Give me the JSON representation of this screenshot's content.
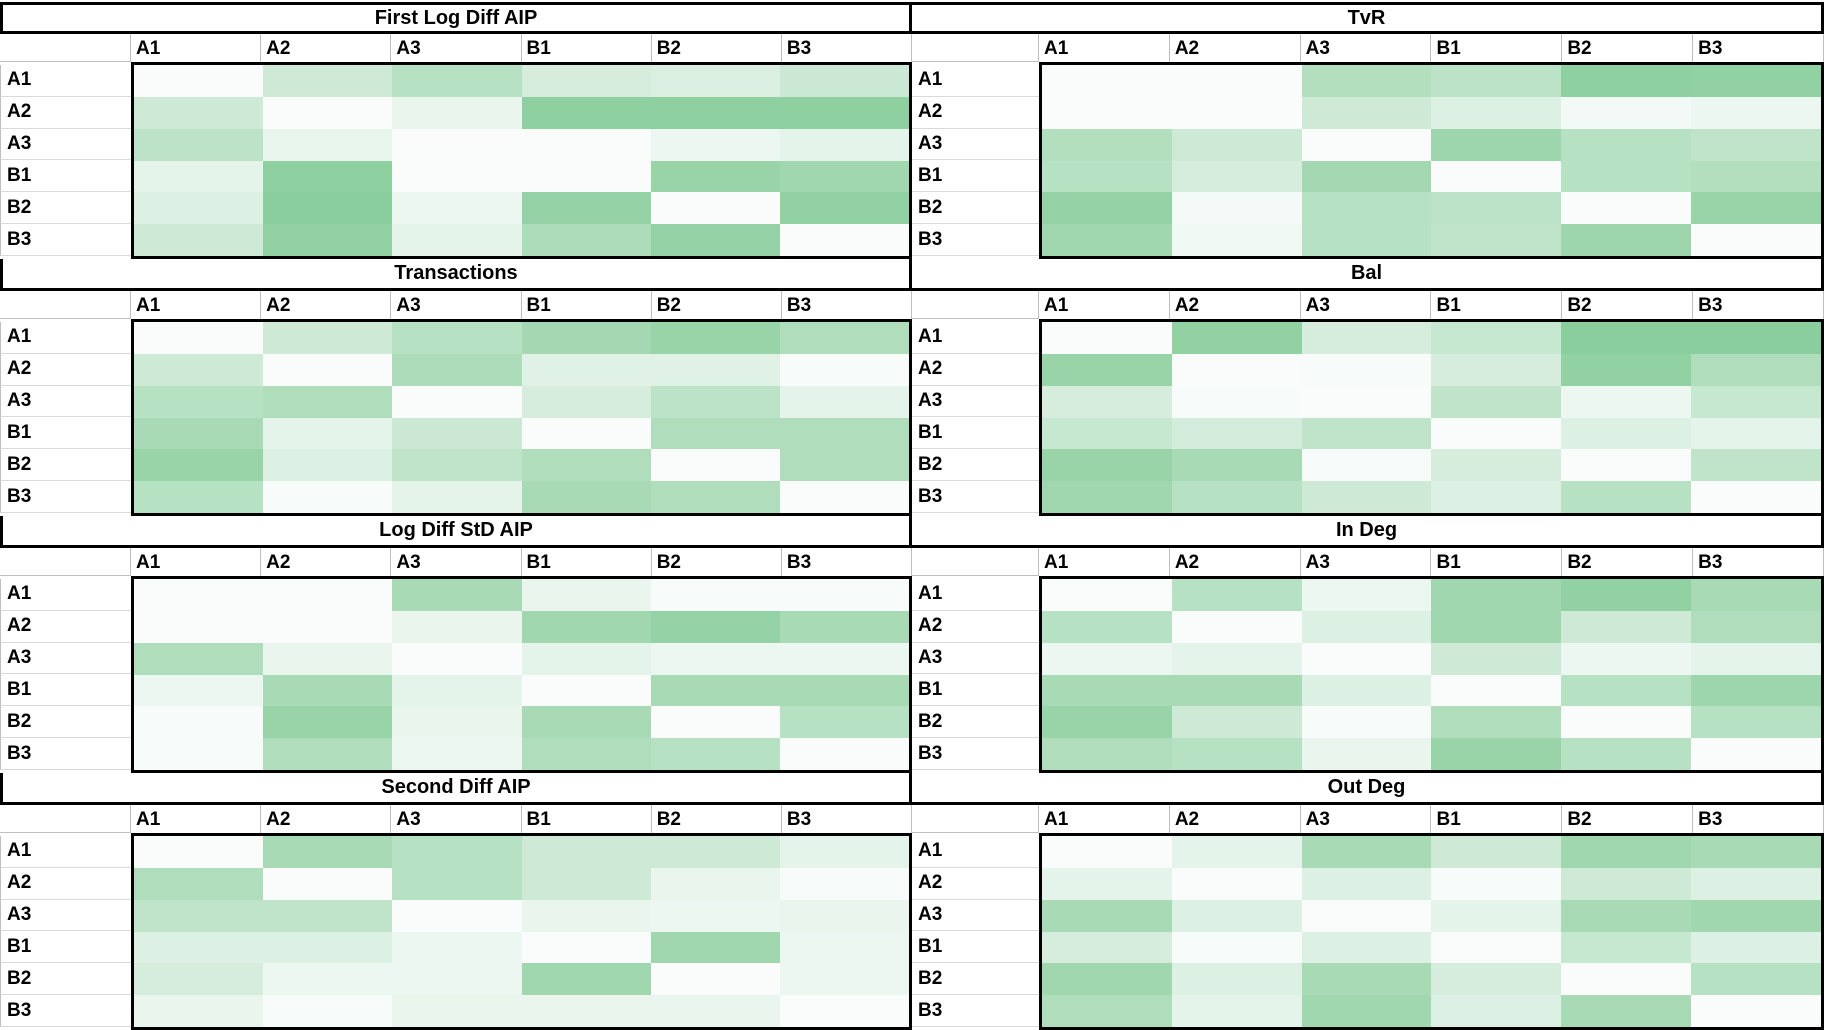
{
  "page": {
    "background": "#ffffff"
  },
  "labels": {
    "rows": [
      "A1",
      "A2",
      "A3",
      "B1",
      "B2",
      "B3"
    ],
    "cols": [
      "A1",
      "A2",
      "A3",
      "B1",
      "B2",
      "B3"
    ]
  },
  "heatmap_scale": {
    "min_color": "#FCFDFE",
    "max_color": "#63BE7B",
    "border_color": "#000000",
    "gridline_color": "#BFBFBF",
    "note": "values are normalized cell shading intensities read from the screenshot: 0 = white, 1 = full green"
  },
  "chart_data": [
    {
      "type": "heatmap",
      "title": "First Log Diff AIP",
      "x_labels": [
        "A1",
        "A2",
        "A3",
        "B1",
        "B2",
        "B3"
      ],
      "y_labels": [
        "A1",
        "A2",
        "A3",
        "B1",
        "B2",
        "B3"
      ],
      "values": [
        [
          0.02,
          0.3,
          0.45,
          0.25,
          0.22,
          0.33
        ],
        [
          0.3,
          0.02,
          0.12,
          0.72,
          0.72,
          0.72
        ],
        [
          0.42,
          0.13,
          0.02,
          0.02,
          0.1,
          0.15
        ],
        [
          0.15,
          0.72,
          0.02,
          0.02,
          0.65,
          0.6
        ],
        [
          0.2,
          0.75,
          0.1,
          0.68,
          0.02,
          0.7
        ],
        [
          0.3,
          0.7,
          0.15,
          0.52,
          0.68,
          0.02
        ]
      ]
    },
    {
      "type": "heatmap",
      "title": "TvR",
      "x_labels": [
        "A1",
        "A2",
        "A3",
        "B1",
        "B2",
        "B3"
      ],
      "y_labels": [
        "A1",
        "A2",
        "A3",
        "B1",
        "B2",
        "B3"
      ],
      "values": [
        [
          0.02,
          0.02,
          0.48,
          0.42,
          0.72,
          0.7
        ],
        [
          0.02,
          0.02,
          0.3,
          0.2,
          0.06,
          0.1
        ],
        [
          0.48,
          0.3,
          0.02,
          0.62,
          0.45,
          0.4
        ],
        [
          0.45,
          0.25,
          0.58,
          0.02,
          0.45,
          0.48
        ],
        [
          0.68,
          0.05,
          0.45,
          0.42,
          0.02,
          0.65
        ],
        [
          0.6,
          0.07,
          0.45,
          0.4,
          0.62,
          0.02
        ]
      ]
    },
    {
      "type": "heatmap",
      "title": "Transactions",
      "x_labels": [
        "A1",
        "A2",
        "A3",
        "B1",
        "B2",
        "B3"
      ],
      "y_labels": [
        "A1",
        "A2",
        "A3",
        "B1",
        "B2",
        "B3"
      ],
      "values": [
        [
          0.02,
          0.3,
          0.45,
          0.58,
          0.65,
          0.5
        ],
        [
          0.3,
          0.02,
          0.52,
          0.18,
          0.18,
          0.03
        ],
        [
          0.45,
          0.5,
          0.02,
          0.25,
          0.42,
          0.15
        ],
        [
          0.55,
          0.15,
          0.33,
          0.02,
          0.5,
          0.5
        ],
        [
          0.65,
          0.2,
          0.4,
          0.5,
          0.02,
          0.5
        ],
        [
          0.45,
          0.03,
          0.15,
          0.55,
          0.5,
          0.02
        ]
      ]
    },
    {
      "type": "heatmap",
      "title": "Bal",
      "x_labels": [
        "A1",
        "A2",
        "A3",
        "B1",
        "B2",
        "B3"
      ],
      "y_labels": [
        "A1",
        "A2",
        "A3",
        "B1",
        "B2",
        "B3"
      ],
      "values": [
        [
          0.02,
          0.7,
          0.25,
          0.35,
          0.75,
          0.75
        ],
        [
          0.65,
          0.02,
          0.03,
          0.25,
          0.7,
          0.5
        ],
        [
          0.25,
          0.03,
          0.02,
          0.4,
          0.1,
          0.35
        ],
        [
          0.35,
          0.27,
          0.4,
          0.02,
          0.2,
          0.15
        ],
        [
          0.65,
          0.55,
          0.04,
          0.25,
          0.02,
          0.4
        ],
        [
          0.6,
          0.45,
          0.3,
          0.2,
          0.45,
          0.02
        ]
      ]
    },
    {
      "type": "heatmap",
      "title": "Log Diff StD AIP",
      "x_labels": [
        "A1",
        "A2",
        "A3",
        "B1",
        "B2",
        "B3"
      ],
      "y_labels": [
        "A1",
        "A2",
        "A3",
        "B1",
        "B2",
        "B3"
      ],
      "values": [
        [
          0.02,
          0.02,
          0.55,
          0.12,
          0.03,
          0.03
        ],
        [
          0.02,
          0.02,
          0.12,
          0.6,
          0.68,
          0.55
        ],
        [
          0.5,
          0.12,
          0.02,
          0.15,
          0.1,
          0.1
        ],
        [
          0.1,
          0.55,
          0.15,
          0.02,
          0.55,
          0.55
        ],
        [
          0.03,
          0.65,
          0.12,
          0.55,
          0.02,
          0.45
        ],
        [
          0.03,
          0.5,
          0.1,
          0.5,
          0.45,
          0.02
        ]
      ]
    },
    {
      "type": "heatmap",
      "title": "In Deg",
      "x_labels": [
        "A1",
        "A2",
        "A3",
        "B1",
        "B2",
        "B3"
      ],
      "y_labels": [
        "A1",
        "A2",
        "A3",
        "B1",
        "B2",
        "B3"
      ],
      "values": [
        [
          0.02,
          0.45,
          0.1,
          0.6,
          0.7,
          0.55
        ],
        [
          0.45,
          0.02,
          0.2,
          0.6,
          0.3,
          0.5
        ],
        [
          0.1,
          0.15,
          0.02,
          0.3,
          0.1,
          0.15
        ],
        [
          0.55,
          0.55,
          0.2,
          0.02,
          0.45,
          0.62
        ],
        [
          0.65,
          0.3,
          0.03,
          0.5,
          0.02,
          0.45
        ],
        [
          0.5,
          0.45,
          0.12,
          0.65,
          0.45,
          0.02
        ]
      ]
    },
    {
      "type": "heatmap",
      "title": "Second Diff AIP",
      "x_labels": [
        "A1",
        "A2",
        "A3",
        "B1",
        "B2",
        "B3"
      ],
      "y_labels": [
        "A1",
        "A2",
        "A3",
        "B1",
        "B2",
        "B3"
      ],
      "values": [
        [
          0.02,
          0.55,
          0.45,
          0.3,
          0.3,
          0.15
        ],
        [
          0.5,
          0.02,
          0.45,
          0.3,
          0.12,
          0.03
        ],
        [
          0.4,
          0.4,
          0.02,
          0.12,
          0.1,
          0.12
        ],
        [
          0.2,
          0.2,
          0.1,
          0.02,
          0.6,
          0.1
        ],
        [
          0.25,
          0.1,
          0.1,
          0.6,
          0.02,
          0.1
        ],
        [
          0.12,
          0.03,
          0.12,
          0.12,
          0.12,
          0.02
        ]
      ]
    },
    {
      "type": "heatmap",
      "title": "Out Deg",
      "x_labels": [
        "A1",
        "A2",
        "A3",
        "B1",
        "B2",
        "B3"
      ],
      "y_labels": [
        "A1",
        "A2",
        "A3",
        "B1",
        "B2",
        "B3"
      ],
      "values": [
        [
          0.02,
          0.15,
          0.55,
          0.3,
          0.6,
          0.55
        ],
        [
          0.15,
          0.02,
          0.2,
          0.03,
          0.3,
          0.2
        ],
        [
          0.55,
          0.2,
          0.02,
          0.15,
          0.55,
          0.6
        ],
        [
          0.25,
          0.03,
          0.2,
          0.02,
          0.35,
          0.2
        ],
        [
          0.6,
          0.2,
          0.55,
          0.25,
          0.02,
          0.45
        ],
        [
          0.5,
          0.15,
          0.6,
          0.2,
          0.55,
          0.02
        ]
      ]
    }
  ]
}
